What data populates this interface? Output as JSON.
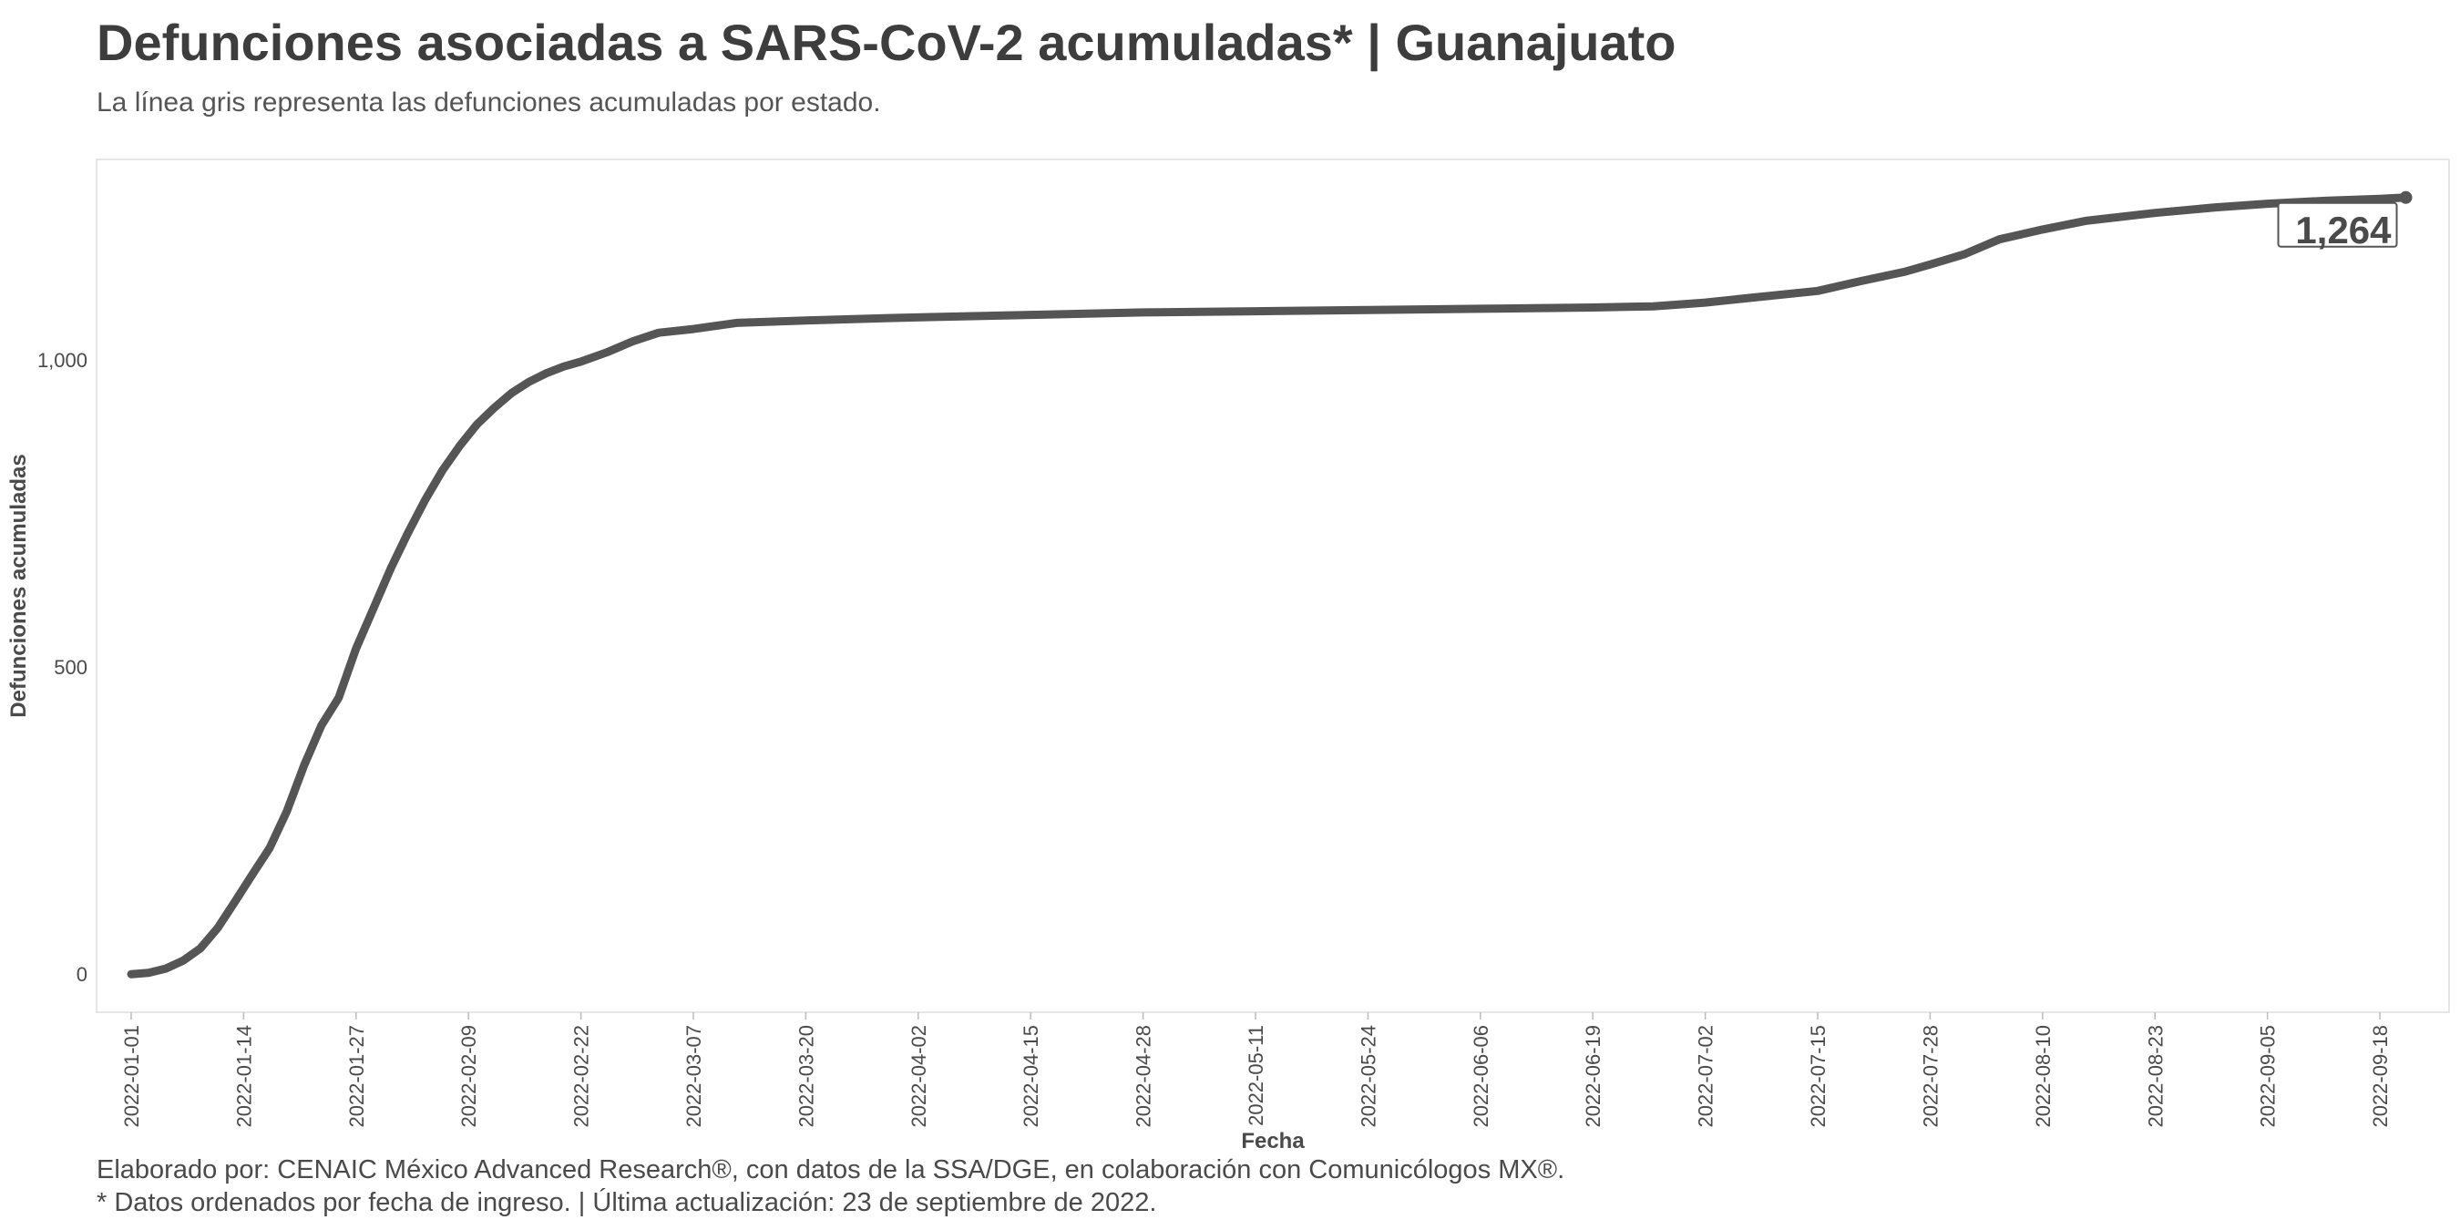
{
  "header": {
    "title": "Defunciones asociadas a SARS-CoV-2 acumuladas* | Guanajuato",
    "subtitle": "La línea gris representa las defunciones acumuladas por estado."
  },
  "footer": {
    "caption_1": "Elaborado por: CENAIC México Advanced Research®, con datos de la SSA/DGE, en colaboración con Comunicólogos MX®.",
    "caption_2": "* Datos ordenados por fecha de ingreso. | Última actualización: 23 de septiembre de 2022."
  },
  "chart_data": {
    "type": "line",
    "title": "Defunciones asociadas a SARS-CoV-2 acumuladas* | Guanajuato",
    "subtitle": "La línea gris representa las defunciones acumuladas por estado.",
    "xlabel": "Fecha",
    "ylabel": "Defunciones acumuladas",
    "x_range": [
      "2021-12-28",
      "2022-09-26"
    ],
    "ylim": [
      -62,
      1326
    ],
    "x_ticks": [
      "2022-01-01",
      "2022-01-14",
      "2022-01-27",
      "2022-02-09",
      "2022-02-22",
      "2022-03-07",
      "2022-03-20",
      "2022-04-02",
      "2022-04-15",
      "2022-04-28",
      "2022-05-11",
      "2022-05-24",
      "2022-06-06",
      "2022-06-19",
      "2022-07-02",
      "2022-07-15",
      "2022-07-28",
      "2022-08-10",
      "2022-08-23",
      "2022-09-05",
      "2022-09-18"
    ],
    "y_ticks": [
      0,
      500,
      1000
    ],
    "y_tick_labels": [
      "0",
      "500",
      "1,000"
    ],
    "grid": false,
    "line_color": "#555555",
    "series": [
      {
        "x": [
          "2022-01-01",
          "2022-01-03",
          "2022-01-05",
          "2022-01-07",
          "2022-01-09",
          "2022-01-11",
          "2022-01-13",
          "2022-01-15",
          "2022-01-17",
          "2022-01-19",
          "2022-01-21",
          "2022-01-23",
          "2022-01-25",
          "2022-01-27",
          "2022-01-29",
          "2022-01-31",
          "2022-02-02",
          "2022-02-04",
          "2022-02-06",
          "2022-02-08",
          "2022-02-10",
          "2022-02-12",
          "2022-02-14",
          "2022-02-16",
          "2022-02-18",
          "2022-02-20",
          "2022-02-22",
          "2022-02-25",
          "2022-02-28",
          "2022-03-03",
          "2022-03-07",
          "2022-03-12",
          "2022-03-20",
          "2022-03-30",
          "2022-04-15",
          "2022-04-28",
          "2022-05-11",
          "2022-05-24",
          "2022-06-06",
          "2022-06-19",
          "2022-06-26",
          "2022-07-02",
          "2022-07-08",
          "2022-07-15",
          "2022-07-20",
          "2022-07-25",
          "2022-07-28",
          "2022-08-01",
          "2022-08-05",
          "2022-08-10",
          "2022-08-15",
          "2022-08-23",
          "2022-08-30",
          "2022-09-05",
          "2022-09-12",
          "2022-09-18",
          "2022-09-21"
        ],
        "values": [
          0,
          2,
          9,
          22,
          42,
          75,
          118,
          162,
          205,
          265,
          340,
          405,
          450,
          530,
          595,
          660,
          718,
          772,
          820,
          860,
          895,
          922,
          946,
          964,
          978,
          989,
          997,
          1012,
          1030,
          1044,
          1050,
          1060,
          1064,
          1068,
          1073,
          1077,
          1079,
          1081,
          1083,
          1085,
          1087,
          1093,
          1102,
          1112,
          1128,
          1143,
          1155,
          1172,
          1196,
          1212,
          1226,
          1239,
          1248,
          1254,
          1259,
          1262,
          1264
        ]
      }
    ],
    "end_label": "1,264"
  }
}
